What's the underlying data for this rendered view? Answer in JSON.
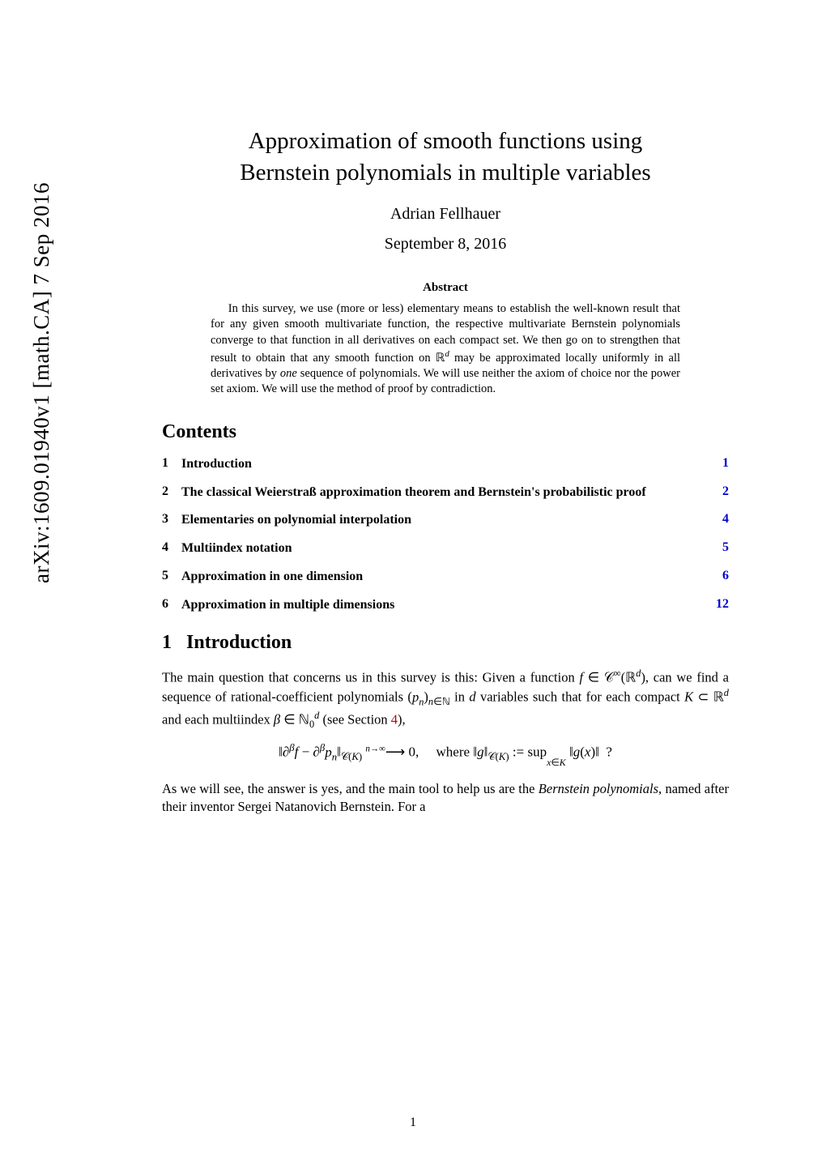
{
  "arxiv_stamp": "arXiv:1609.01940v1  [math.CA]  7 Sep 2016",
  "title_line1": "Approximation of smooth functions using",
  "title_line2": "Bernstein polynomials in multiple variables",
  "author": "Adrian Fellhauer",
  "date": "September 8, 2016",
  "abstract_heading": "Abstract",
  "abstract_body": "In this survey, we use (more or less) elementary means to establish the well-known result that for any given smooth multivariate function, the respective multivariate Bernstein polynomials converge to that function in all derivatives on each compact set. We then go on to strengthen that result to obtain that any smooth function on ℝᵈ may be approximated locally uniformly in all derivatives by one sequence of polynomials. We will use neither the axiom of choice nor the power set axiom. We will use the method of proof by contradiction.",
  "contents_heading": "Contents",
  "toc": [
    {
      "num": "1",
      "label": "Introduction",
      "page": "1",
      "color": "#0000d0"
    },
    {
      "num": "2",
      "label": "The classical Weierstraß approximation theorem and Bernstein's probabilistic proof",
      "page": "2",
      "color": "#0000d0"
    },
    {
      "num": "3",
      "label": "Elementaries on polynomial interpolation",
      "page": "4",
      "color": "#0000d0"
    },
    {
      "num": "4",
      "label": "Multiindex notation",
      "page": "5",
      "color": "#0000d0"
    },
    {
      "num": "5",
      "label": "Approximation in one dimension",
      "page": "6",
      "color": "#0000d0"
    },
    {
      "num": "6",
      "label": "Approximation in multiple dimensions",
      "page": "12",
      "color": "#0000d0"
    }
  ],
  "section1_num": "1",
  "section1_title": "Introduction",
  "intro_p1a": "The main question that concerns us in this survey is this: Given a function ",
  "intro_p1b": "f ∈ 𝒞 ∞(ℝᵈ), can we find a sequence of rational-coefficient polynomials (pₙ)ₙ∈ℕ in d variables such that for each compact K ⊂ ℝᵈ and each multiindex β ∈ ℕ₀ᵈ (see Section ",
  "intro_p1_seclink": "4",
  "intro_p1c": "),",
  "formula": "‖∂^β f − ∂^β pₙ‖_{𝒞(K)}  ⟶  0   as  n→∞,     where  ‖g‖_{𝒞(K)} := sup_{x∈K} ‖g(x)‖  ?",
  "intro_p2": "As we will see, the answer is yes, and the main tool to help us are the Bernstein polynomials, named after their inventor Sergei Natanovich Bernstein. For a",
  "page_number": "1",
  "colors": {
    "link_blue": "#0000d0",
    "link_red": "#c00000",
    "text": "#000000",
    "background": "#ffffff"
  }
}
